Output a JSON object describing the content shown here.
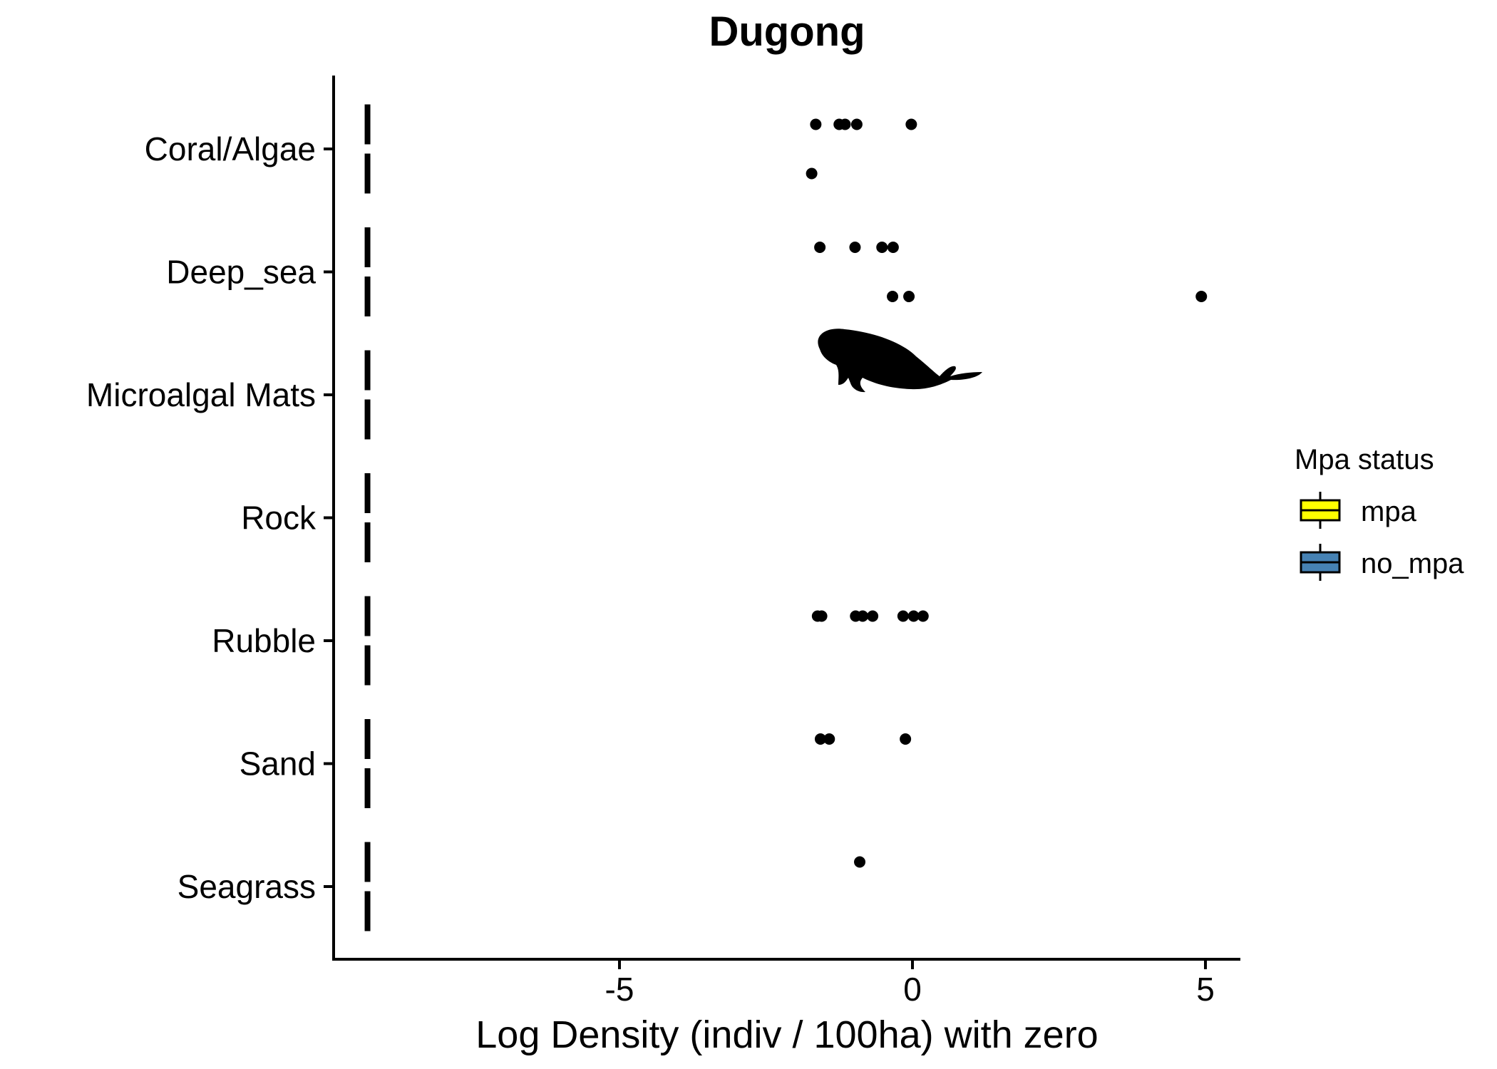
{
  "chart_data": {
    "type": "box",
    "title": "Dugong",
    "xlabel": "Log Density (indiv / 100ha) with zero",
    "ylabel": "",
    "xlim": [
      -10.0,
      5.6
    ],
    "xticks": [
      -5,
      0,
      5
    ],
    "xtick_labels": [
      "-5",
      "0",
      "5"
    ],
    "categories": [
      "Coral/Algae",
      "Deep_sea",
      "Microalgal Mats",
      "Rock",
      "Rubble",
      "Sand",
      "Seagrass"
    ],
    "zero_value": -9.3,
    "boxes": [
      {
        "category": "Coral/Algae",
        "group": "mpa",
        "value": -9.3
      },
      {
        "category": "Coral/Algae",
        "group": "no_mpa",
        "value": -9.3
      },
      {
        "category": "Deep_sea",
        "group": "mpa",
        "value": -9.3
      },
      {
        "category": "Deep_sea",
        "group": "no_mpa",
        "value": -9.3
      },
      {
        "category": "Microalgal Mats",
        "group": "mpa",
        "value": -9.3
      },
      {
        "category": "Microalgal Mats",
        "group": "no_mpa",
        "value": -9.3
      },
      {
        "category": "Rock",
        "group": "mpa",
        "value": -9.3
      },
      {
        "category": "Rock",
        "group": "no_mpa",
        "value": -9.3
      },
      {
        "category": "Rubble",
        "group": "mpa",
        "value": -9.3
      },
      {
        "category": "Rubble",
        "group": "no_mpa",
        "value": -9.3
      },
      {
        "category": "Sand",
        "group": "mpa",
        "value": -9.3
      },
      {
        "category": "Sand",
        "group": "no_mpa",
        "value": -9.3
      },
      {
        "category": "Seagrass",
        "group": "mpa",
        "value": -9.3
      },
      {
        "category": "Seagrass",
        "group": "no_mpa",
        "value": -9.3
      }
    ],
    "points": [
      {
        "category": "Coral/Algae",
        "group": "mpa",
        "values": [
          -1.65,
          -1.25,
          -1.15,
          -0.95,
          -0.02
        ]
      },
      {
        "category": "Coral/Algae",
        "group": "no_mpa",
        "values": [
          -1.72
        ]
      },
      {
        "category": "Deep_sea",
        "group": "mpa",
        "values": [
          -1.58,
          -0.98,
          -0.52,
          -0.33
        ]
      },
      {
        "category": "Deep_sea",
        "group": "no_mpa",
        "values": [
          -0.34,
          -0.06,
          4.93
        ]
      },
      {
        "category": "Rubble",
        "group": "mpa",
        "values": [
          -1.62,
          -1.55,
          -0.97,
          -0.85,
          -0.68,
          -0.16,
          0.02,
          0.18
        ]
      },
      {
        "category": "Sand",
        "group": "mpa",
        "values": [
          -1.57,
          -1.42,
          -0.12
        ]
      },
      {
        "category": "Seagrass",
        "group": "mpa",
        "values": [
          -0.9
        ]
      }
    ],
    "legend": {
      "title": "Mpa status",
      "position": "right",
      "entries": [
        {
          "label": "mpa",
          "color": "#FFFF00"
        },
        {
          "label": "no_mpa",
          "color": "#4682B4"
        }
      ]
    },
    "point_color": "#000000",
    "grid": false
  }
}
